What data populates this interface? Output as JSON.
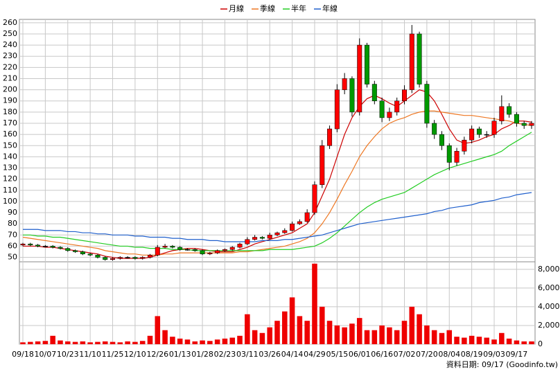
{
  "chart_data": {
    "type": "candlestick",
    "legend": [
      "月線",
      "季線",
      "半年",
      "年線"
    ],
    "footer": "資料日期: 09/17  (Goodinfo.tw)",
    "categories": [
      "09/18",
      null,
      null,
      "10/07",
      null,
      null,
      "10/23",
      null,
      null,
      "11/10",
      null,
      null,
      "11/25",
      null,
      null,
      "12/10",
      null,
      null,
      "12/26",
      null,
      null,
      "01/13",
      null,
      null,
      "01/28",
      null,
      null,
      "02/23",
      null,
      null,
      "03/11",
      null,
      null,
      "03/26",
      null,
      null,
      "04/14",
      null,
      null,
      "04/29",
      null,
      null,
      "05/15",
      null,
      null,
      "06/01",
      null,
      null,
      "06/16",
      null,
      null,
      "07/02",
      null,
      null,
      "07/20",
      null,
      null,
      "08/04",
      null,
      null,
      "08/19",
      null,
      null,
      "09/03",
      null,
      null,
      "09/17",
      null,
      null
    ],
    "open": [
      61,
      62,
      61,
      60,
      60,
      59,
      58,
      56,
      55,
      53,
      52,
      50,
      48,
      49,
      50,
      50,
      49,
      50,
      52,
      59,
      60,
      59,
      57,
      57,
      56,
      53,
      54,
      56,
      57,
      59,
      62,
      66,
      68,
      67,
      70,
      72,
      74,
      80,
      82,
      90,
      115,
      150,
      165,
      200,
      210,
      180,
      240,
      205,
      190,
      175,
      180,
      190,
      200,
      250,
      205,
      170,
      160,
      150,
      135,
      145,
      155,
      165,
      160,
      160,
      172,
      185,
      178,
      170,
      168
    ],
    "high": [
      63,
      63,
      62,
      61,
      61,
      60,
      59,
      57,
      56,
      54,
      53,
      51,
      50,
      51,
      51,
      51,
      51,
      53,
      61,
      62,
      61,
      60,
      58,
      58,
      57,
      55,
      57,
      58,
      60,
      63,
      68,
      70,
      69,
      72,
      73,
      76,
      82,
      84,
      93,
      118,
      155,
      168,
      205,
      215,
      212,
      246,
      242,
      208,
      193,
      184,
      193,
      204,
      258,
      252,
      208,
      173,
      163,
      152,
      148,
      158,
      168,
      167,
      163,
      175,
      195,
      188,
      180,
      172,
      172
    ],
    "low": [
      60,
      60,
      59,
      59,
      58,
      57,
      55,
      54,
      52,
      51,
      49,
      47,
      47,
      48,
      49,
      48,
      48,
      49,
      51,
      58,
      58,
      56,
      56,
      55,
      52,
      52,
      53,
      55,
      56,
      58,
      61,
      65,
      66,
      66,
      69,
      71,
      73,
      79,
      81,
      88,
      112,
      147,
      162,
      196,
      176,
      177,
      202,
      187,
      171,
      172,
      177,
      187,
      197,
      202,
      166,
      156,
      146,
      128,
      132,
      142,
      152,
      157,
      157,
      157,
      169,
      175,
      167,
      165,
      165
    ],
    "close": [
      62,
      61,
      60,
      60,
      59,
      58,
      56,
      55,
      53,
      52,
      50,
      48,
      49,
      50,
      50,
      49,
      50,
      52,
      59,
      60,
      59,
      57,
      57,
      56,
      53,
      54,
      56,
      57,
      59,
      62,
      66,
      68,
      67,
      70,
      72,
      74,
      80,
      82,
      90,
      115,
      150,
      165,
      200,
      210,
      180,
      240,
      205,
      190,
      175,
      180,
      190,
      200,
      250,
      205,
      170,
      160,
      150,
      135,
      145,
      155,
      165,
      160,
      160,
      172,
      185,
      178,
      170,
      168,
      170
    ],
    "up_color": "#ff0000",
    "down_color": "#009900",
    "flat_color": "#000000",
    "series": [
      {
        "name": "月線",
        "color": "#cc0000",
        "values": [
          60,
          60,
          60,
          59,
          59,
          58,
          57,
          56,
          55,
          54,
          53,
          51,
          50,
          49,
          49,
          49,
          49,
          50,
          52,
          54,
          56,
          57,
          58,
          58,
          57,
          56,
          55,
          55,
          55,
          57,
          59,
          62,
          64,
          66,
          68,
          70,
          72,
          76,
          80,
          90,
          105,
          120,
          140,
          160,
          175,
          185,
          192,
          195,
          192,
          188,
          185,
          190,
          195,
          200,
          198,
          190,
          178,
          165,
          155,
          152,
          153,
          155,
          158,
          160,
          165,
          168,
          172,
          172,
          171
        ]
      },
      {
        "name": "季線",
        "color": "#ee7722",
        "values": [
          68,
          67,
          66,
          65,
          64,
          63,
          62,
          61,
          60,
          59,
          58,
          56,
          55,
          54,
          53,
          53,
          52,
          52,
          52,
          53,
          53,
          54,
          54,
          54,
          54,
          54,
          54,
          54,
          54,
          55,
          55,
          56,
          57,
          58,
          59,
          60,
          62,
          64,
          67,
          72,
          80,
          90,
          102,
          115,
          127,
          140,
          150,
          158,
          165,
          170,
          173,
          175,
          178,
          180,
          181,
          181,
          180,
          179,
          178,
          177,
          177,
          176,
          175,
          174,
          173,
          172,
          170,
          169,
          168
        ]
      },
      {
        "name": "半年",
        "color": "#22cc22",
        "values": [
          70,
          70,
          69,
          69,
          68,
          68,
          67,
          66,
          65,
          64,
          63,
          62,
          61,
          60,
          60,
          59,
          59,
          58,
          58,
          58,
          57,
          57,
          57,
          56,
          56,
          56,
          56,
          56,
          56,
          56,
          56,
          56,
          56,
          57,
          57,
          57,
          57,
          58,
          59,
          60,
          63,
          67,
          72,
          78,
          84,
          90,
          95,
          99,
          102,
          104,
          106,
          108,
          112,
          116,
          120,
          124,
          127,
          130,
          132,
          134,
          136,
          138,
          140,
          142,
          145,
          150,
          154,
          158,
          162
        ]
      },
      {
        "name": "年線",
        "color": "#1f5fcc",
        "values": [
          75,
          75,
          75,
          74,
          74,
          74,
          73,
          73,
          72,
          72,
          71,
          71,
          70,
          70,
          70,
          69,
          69,
          68,
          68,
          68,
          67,
          67,
          66,
          66,
          66,
          65,
          65,
          64,
          64,
          64,
          64,
          64,
          65,
          65,
          65,
          66,
          66,
          67,
          68,
          69,
          70,
          72,
          74,
          76,
          78,
          80,
          81,
          82,
          83,
          84,
          85,
          86,
          87,
          88,
          89,
          91,
          92,
          94,
          95,
          96,
          97,
          99,
          100,
          101,
          103,
          104,
          106,
          107,
          108
        ]
      }
    ],
    "ylim": [
      46,
      263
    ],
    "yticks": [
      50,
      60,
      70,
      80,
      90,
      100,
      110,
      120,
      130,
      140,
      150,
      160,
      170,
      180,
      190,
      200,
      210,
      220,
      230,
      240,
      250,
      260
    ],
    "grid": true,
    "volume": {
      "color": "#ee0000",
      "values": [
        200,
        250,
        300,
        350,
        900,
        400,
        300,
        250,
        300,
        200,
        250,
        300,
        250,
        200,
        300,
        250,
        350,
        900,
        3000,
        1500,
        800,
        600,
        500,
        300,
        400,
        350,
        500,
        600,
        700,
        900,
        3200,
        1500,
        1200,
        1800,
        2500,
        3500,
        5000,
        3000,
        2500,
        8600,
        4000,
        2500,
        2000,
        1800,
        2200,
        2800,
        1500,
        1500,
        2000,
        1800,
        1500,
        2500,
        4000,
        3200,
        2000,
        1500,
        1200,
        1500,
        800,
        700,
        900,
        800,
        700,
        500,
        1200,
        600,
        400,
        300,
        300
      ],
      "ylim": [
        0,
        8800
      ],
      "yticks": [
        0,
        {
          "value": 2000,
          "label": "2,000"
        },
        {
          "value": 4000,
          "label": "4,000"
        },
        {
          "value": 6000,
          "label": "6,000"
        },
        {
          "value": 8000,
          "label": "8,000"
        }
      ]
    }
  }
}
